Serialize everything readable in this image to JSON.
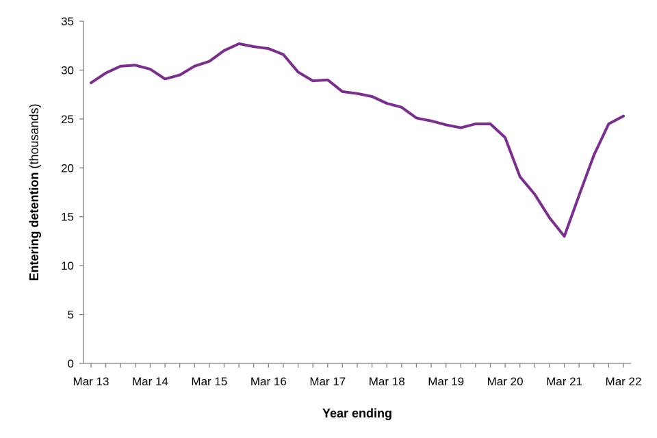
{
  "chart_data": {
    "type": "line",
    "xlabel": "Year ending",
    "ylabel": {
      "bold": "Entering detention",
      "normal": " (thousands)"
    },
    "ylim": [
      0,
      35
    ],
    "y_ticks": [
      0,
      5,
      10,
      15,
      20,
      25,
      30,
      35
    ],
    "x_tick_labels": [
      "Mar 13",
      "Mar 14",
      "Mar 15",
      "Mar 16",
      "Mar 17",
      "Mar 18",
      "Mar 19",
      "Mar 20",
      "Mar 21",
      "Mar 22"
    ],
    "grid": false,
    "legend": "none",
    "line_color": "#7B2E8E",
    "series": [
      {
        "x": [
          "Mar 13",
          "Jun 13",
          "Sep 13",
          "Dec 13",
          "Mar 14",
          "Jun 14",
          "Sep 14",
          "Dec 14",
          "Mar 15",
          "Jun 15",
          "Sep 15",
          "Dec 15",
          "Mar 16",
          "Jun 16",
          "Sep 16",
          "Dec 16",
          "Mar 17",
          "Jun 17",
          "Sep 17",
          "Dec 17",
          "Mar 18",
          "Jun 18",
          "Sep 18",
          "Dec 18",
          "Mar 19",
          "Jun 19",
          "Sep 19",
          "Dec 19",
          "Mar 20",
          "Jun 20",
          "Sep 20",
          "Dec 20",
          "Mar 21",
          "Jun 21",
          "Sep 21",
          "Dec 21",
          "Mar 22"
        ],
        "values": [
          28.7,
          29.7,
          30.4,
          30.5,
          30.1,
          29.1,
          29.5,
          30.4,
          30.9,
          32.0,
          32.7,
          32.4,
          32.2,
          31.6,
          29.8,
          28.9,
          29.0,
          27.8,
          27.6,
          27.3,
          26.6,
          26.2,
          25.1,
          24.8,
          24.4,
          24.1,
          24.5,
          24.5,
          23.1,
          19.1,
          17.3,
          14.9,
          13.0,
          17.2,
          21.3,
          24.5,
          25.3
        ]
      }
    ]
  }
}
